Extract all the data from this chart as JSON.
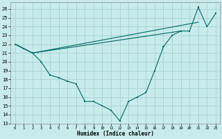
{
  "bg_color": "#c8ecec",
  "line_color": "#006666",
  "grid_color": "#a0cccc",
  "xlabel": "Humidex (Indice chaleur)",
  "xlim": [
    -0.5,
    23.5
  ],
  "ylim": [
    13,
    26.8
  ],
  "yticks": [
    13,
    14,
    15,
    16,
    17,
    18,
    19,
    20,
    21,
    22,
    23,
    24,
    25,
    26
  ],
  "xticks": [
    0,
    1,
    2,
    3,
    4,
    5,
    6,
    7,
    8,
    9,
    10,
    11,
    12,
    13,
    14,
    15,
    16,
    17,
    18,
    19,
    20,
    21,
    22,
    23
  ],
  "lines": [
    {
      "x": [
        0,
        1,
        2,
        3,
        4,
        5,
        6,
        7,
        8,
        9,
        10,
        11,
        12,
        13,
        14,
        15,
        16,
        17,
        18,
        19,
        20,
        21,
        22,
        23
      ],
      "y": [
        22,
        21.5,
        21.0,
        20.0,
        18.5,
        18.2,
        17.8,
        17.5,
        15.5,
        15.5,
        15.0,
        14.5,
        13.3,
        15.5,
        16.0,
        16.5,
        19.0,
        21.7,
        23.0,
        23.5,
        23.5,
        26.2,
        24.0,
        25.5
      ]
    },
    {
      "x": [
        0,
        2,
        21
      ],
      "y": [
        22,
        21,
        24.5
      ]
    },
    {
      "x": [
        0,
        2,
        19
      ],
      "y": [
        22,
        21,
        23.5
      ]
    }
  ]
}
